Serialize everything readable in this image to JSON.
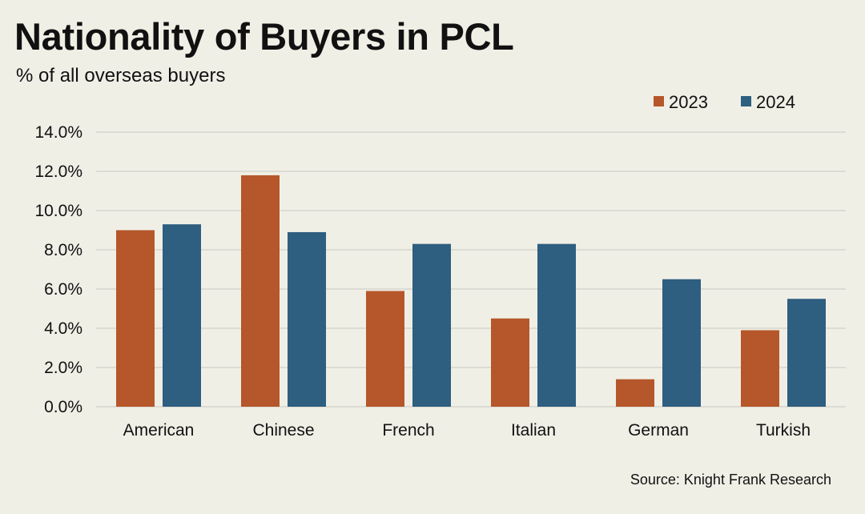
{
  "title": "Nationality of Buyers in PCL",
  "subtitle": "% of all overseas buyers",
  "source": "Source: Knight Frank Research",
  "colors": {
    "background": "#f0efe6",
    "series_2023": "#b5572a",
    "series_2024": "#2e5e80",
    "gridline": "#c9c9c1"
  },
  "chart_data": {
    "type": "bar",
    "title": "Nationality of Buyers in PCL",
    "subtitle": "% of all overseas buyers",
    "categories": [
      "American",
      "Chinese",
      "French",
      "Italian",
      "German",
      "Turkish"
    ],
    "series": [
      {
        "name": "2023",
        "values": [
          9.0,
          11.8,
          5.9,
          4.5,
          1.4,
          3.9
        ]
      },
      {
        "name": "2024",
        "values": [
          9.3,
          8.9,
          8.3,
          8.3,
          6.5,
          5.5
        ]
      }
    ],
    "ylim": [
      0,
      14
    ],
    "yticks": [
      "0.0%",
      "2.0%",
      "4.0%",
      "6.0%",
      "8.0%",
      "10.0%",
      "12.0%",
      "14.0%"
    ],
    "xlabel": "",
    "ylabel": "",
    "grid": true,
    "legend": "top-right"
  }
}
